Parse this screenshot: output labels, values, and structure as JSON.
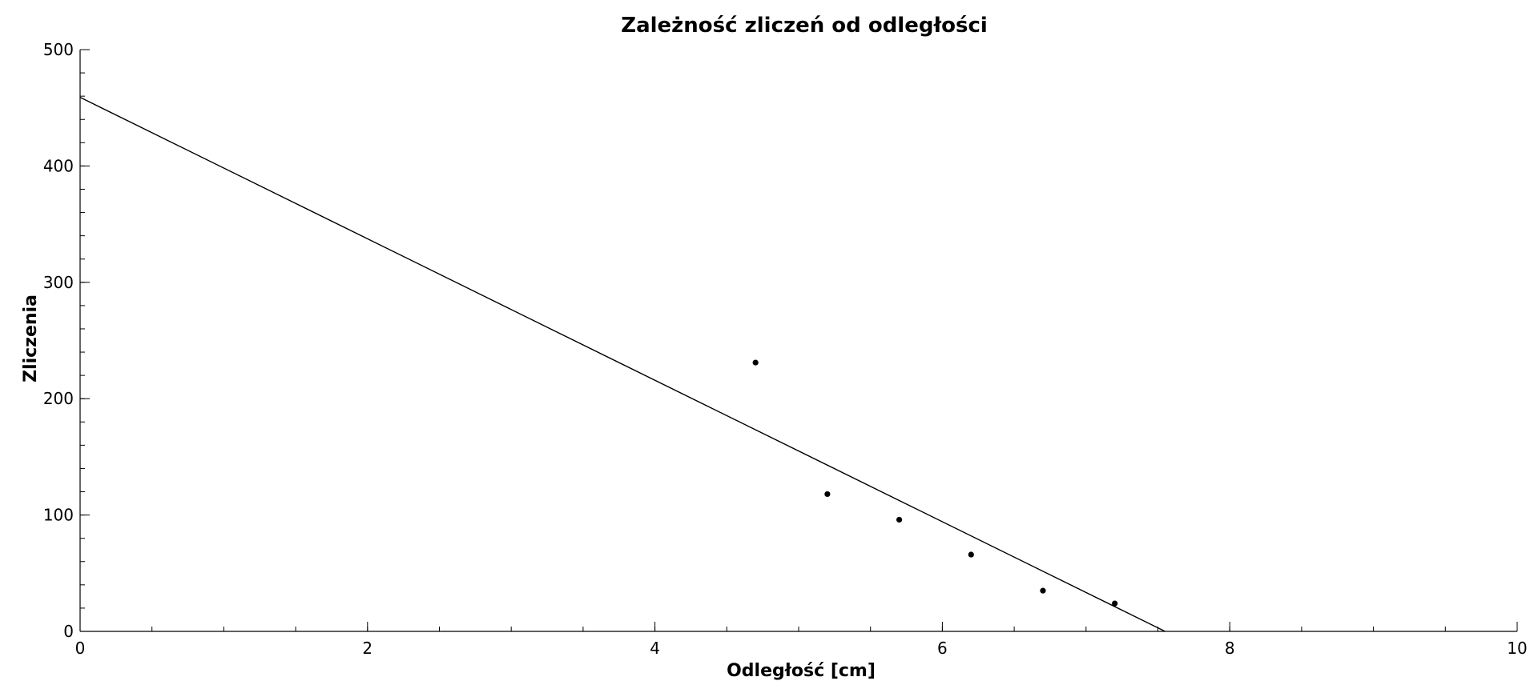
{
  "chart_data": {
    "type": "scatter",
    "title": "Zależność zliczeń od odległości",
    "xlabel": "Odległość [cm]",
    "ylabel": "Zliczenia",
    "xlim": [
      0,
      10
    ],
    "ylim": [
      0,
      500
    ],
    "x_ticks": [
      0,
      2,
      4,
      6,
      8,
      10
    ],
    "y_ticks": [
      0,
      100,
      200,
      300,
      400,
      500
    ],
    "x_ticks_labels": [
      "0",
      "2",
      "4",
      "6",
      "8",
      "10"
    ],
    "y_ticks_labels": [
      "0",
      "100",
      "200",
      "300",
      "400",
      "500"
    ],
    "x_minor_step": 0.5,
    "y_minor_step": 20,
    "grid": false,
    "legend": "none",
    "series": [
      {
        "type": "scatter",
        "x": [
          4.7,
          5.2,
          5.7,
          6.2,
          6.7,
          7.2
        ],
        "y": [
          231,
          118,
          96,
          66,
          35,
          24
        ]
      }
    ],
    "fit_line": {
      "x": [
        0,
        7.55
      ],
      "y": [
        459,
        0
      ]
    }
  }
}
